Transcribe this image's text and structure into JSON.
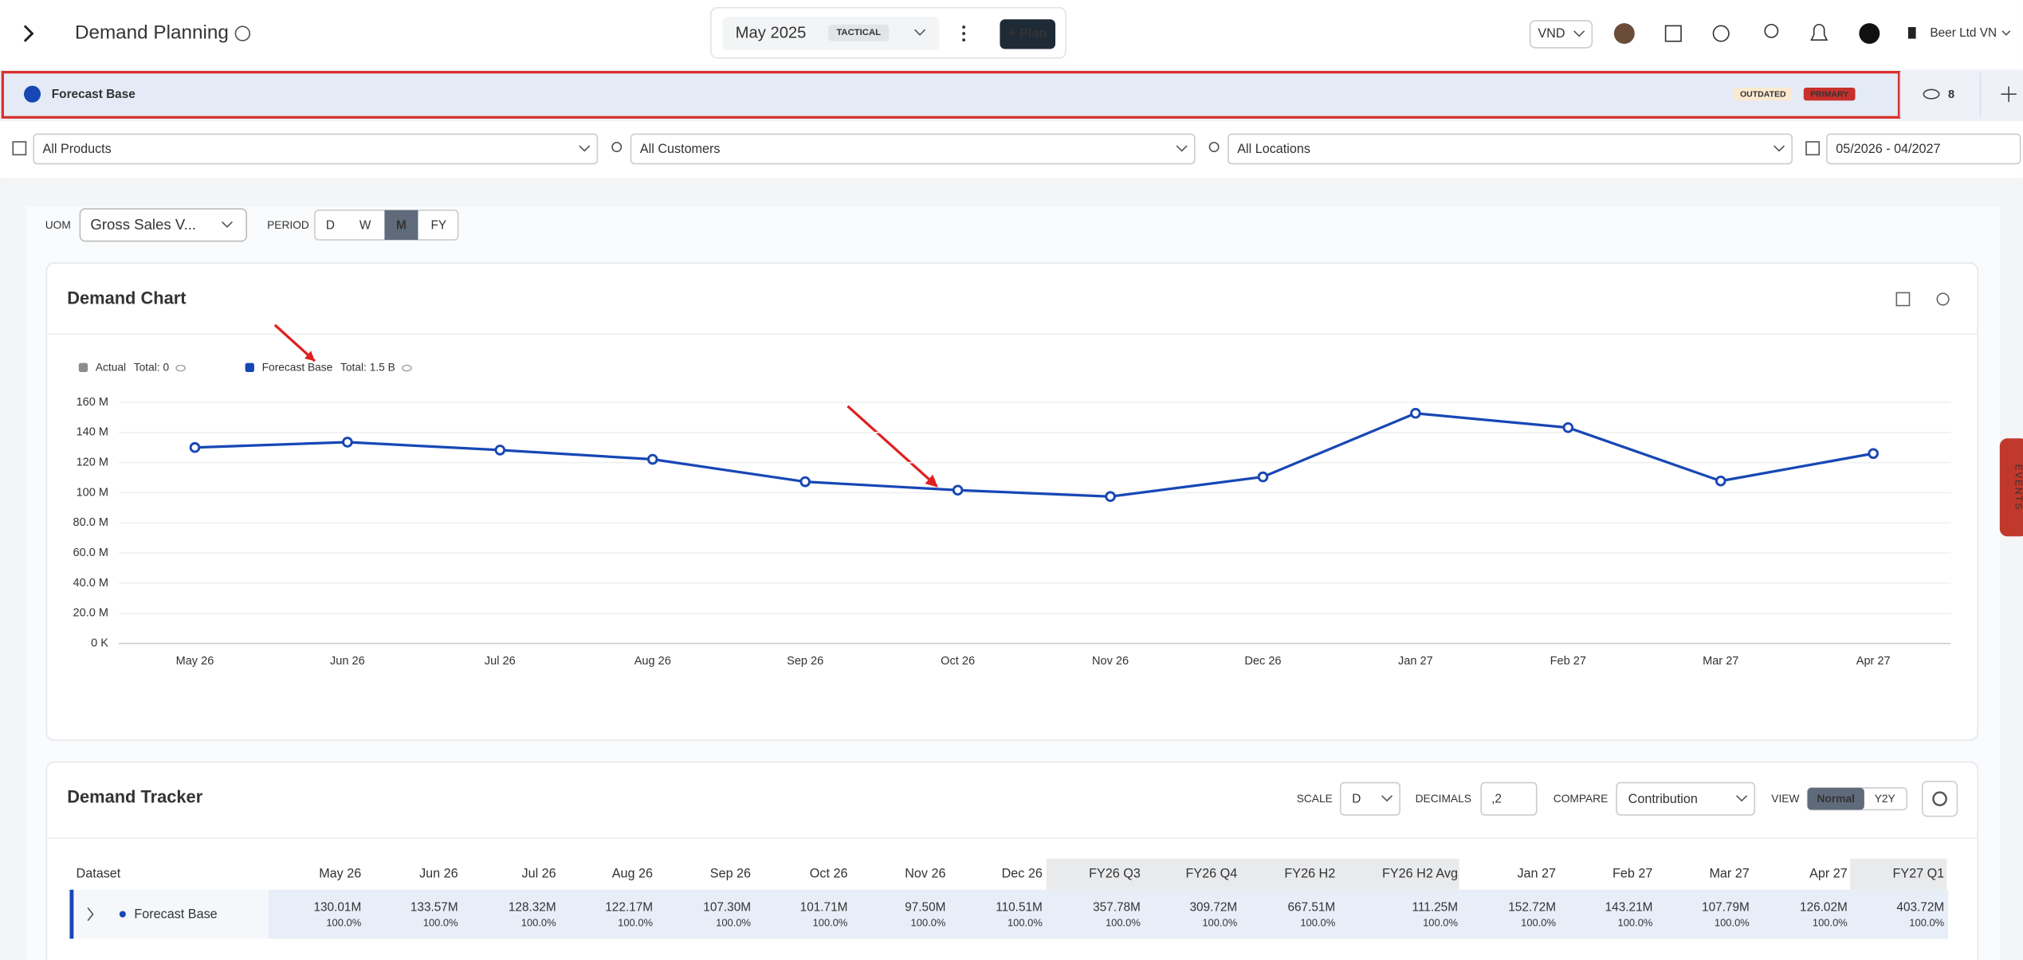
{
  "header": {
    "title": "Demand Planning",
    "cycle": "May 2025",
    "cycle_tag": "TACTICAL",
    "plan_button": "+ Plan",
    "currency": "VND",
    "company": "Beer Ltd VN"
  },
  "scenario_bar": {
    "name": "Forecast Base",
    "badges": [
      "OUTDATED",
      "PRIMARY"
    ],
    "hidden_count": "8"
  },
  "filters": {
    "products": "All Products",
    "customers": "All Customers",
    "locations": "All Locations",
    "date_range": "05/2026 - 04/2027"
  },
  "controls": {
    "uom_label": "UOM",
    "uom": "Gross Sales V...",
    "period_label": "PERIOD",
    "periods": [
      "D",
      "W",
      "M",
      "FY"
    ]
  },
  "chart_data": {
    "type": "line",
    "title": "Demand Chart",
    "categories": [
      "May 26",
      "Jun 26",
      "Jul 26",
      "Aug 26",
      "Sep 26",
      "Oct 26",
      "Nov 26",
      "Dec 26",
      "Jan 27",
      "Feb 27",
      "Mar 27",
      "Apr 27"
    ],
    "series": [
      {
        "name": "Actual",
        "color": "#8c8c8c",
        "total": "Total: 0",
        "values": [
          null,
          null,
          null,
          null,
          null,
          null,
          null,
          null,
          null,
          null,
          null,
          null
        ]
      },
      {
        "name": "Forecast Base",
        "color": "#1747b5",
        "total": "Total: 1.5 B",
        "values": [
          130.01,
          133.57,
          128.32,
          122.17,
          107.3,
          101.71,
          97.5,
          110.51,
          152.72,
          143.21,
          107.79,
          126.02
        ]
      }
    ],
    "ylim": [
      0,
      160
    ],
    "yticks": [
      {
        "value": 0,
        "label": "0 K"
      },
      {
        "value": 20,
        "label": "20.0 M"
      },
      {
        "value": 40,
        "label": "40.0 M"
      },
      {
        "value": 60,
        "label": "60.0 M"
      },
      {
        "value": 80,
        "label": "80.0 M"
      },
      {
        "value": 100,
        "label": "100 M"
      },
      {
        "value": 120,
        "label": "120 M"
      },
      {
        "value": 140,
        "label": "140 M"
      },
      {
        "value": 160,
        "label": "160 M"
      }
    ],
    "grid": true
  },
  "side_tab": "EVENTS",
  "tracker": {
    "title": "Demand Tracker",
    "scale_label": "SCALE",
    "scale": "D",
    "decimals_label": "DECIMALS",
    "decimals": ",2",
    "compare_label": "COMPARE",
    "compare": "Contribution",
    "view_label": "VIEW",
    "views": [
      "Normal",
      "Y2Y"
    ],
    "table": {
      "header": [
        "Dataset",
        "May 26",
        "Jun 26",
        "Jul 26",
        "Aug 26",
        "Sep 26",
        "Oct 26",
        "Nov 26",
        "Dec 26",
        "FY26 Q3",
        "FY26 Q4",
        "FY26 H2",
        "FY26 H2 Avg",
        "Jan 27",
        "Feb 27",
        "Mar 27",
        "Apr 27",
        "FY27 Q1"
      ],
      "rows": [
        {
          "name": "Forecast Base",
          "values": [
            "130.01M",
            "133.57M",
            "128.32M",
            "122.17M",
            "107.30M",
            "101.71M",
            "97.50M",
            "110.51M",
            "357.78M",
            "309.72M",
            "667.51M",
            "111.25M",
            "152.72M",
            "143.21M",
            "107.79M",
            "126.02M",
            "403.72M"
          ],
          "shares": [
            "100.0%",
            "100.0%",
            "100.0%",
            "100.0%",
            "100.0%",
            "100.0%",
            "100.0%",
            "100.0%",
            "100.0%",
            "100.0%",
            "100.0%",
            "100.0%",
            "100.0%",
            "100.0%",
            "100.0%",
            "100.0%",
            "100.0%"
          ]
        }
      ]
    }
  }
}
